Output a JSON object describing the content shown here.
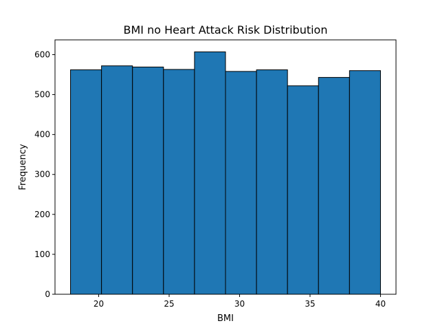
{
  "chart_data": {
    "type": "bar",
    "title": "BMI no Heart Attack Risk Distribution",
    "xlabel": "BMI",
    "ylabel": "Frequency",
    "bins": [
      {
        "start": 18.0,
        "end": 20.2,
        "value": 562
      },
      {
        "start": 20.2,
        "end": 22.4,
        "value": 572
      },
      {
        "start": 22.4,
        "end": 24.6,
        "value": 569
      },
      {
        "start": 24.6,
        "end": 26.8,
        "value": 563
      },
      {
        "start": 26.8,
        "end": 29.0,
        "value": 607
      },
      {
        "start": 29.0,
        "end": 31.2,
        "value": 558
      },
      {
        "start": 31.2,
        "end": 33.4,
        "value": 562
      },
      {
        "start": 33.4,
        "end": 35.6,
        "value": 522
      },
      {
        "start": 35.6,
        "end": 37.8,
        "value": 543
      },
      {
        "start": 37.8,
        "end": 40.0,
        "value": 560
      }
    ],
    "xlim": [
      16.9,
      41.1
    ],
    "ylim": [
      0,
      637
    ],
    "xticks": [
      20,
      25,
      30,
      35,
      40
    ],
    "yticks": [
      0,
      100,
      200,
      300,
      400,
      500,
      600
    ],
    "bar_color": "#1f77b4",
    "edge_color": "#000000",
    "grid": false,
    "legend": "none"
  }
}
